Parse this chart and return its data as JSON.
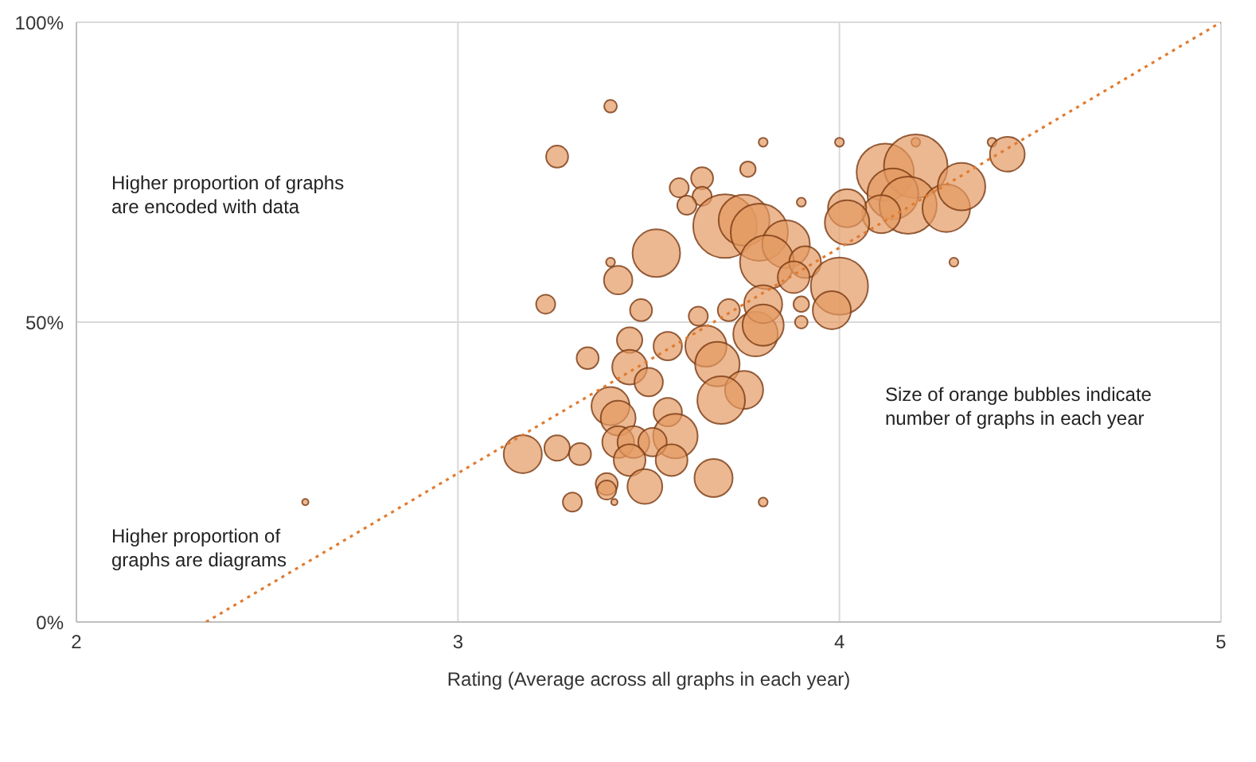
{
  "chart_data": {
    "type": "bubble",
    "xlabel": "Rating (Average across all graphs in each year)",
    "xlim": [
      2,
      5
    ],
    "xticks": [
      2,
      3,
      4,
      5
    ],
    "ylim": [
      0,
      100
    ],
    "yticks": [
      {
        "value": 0,
        "label": "0%"
      },
      {
        "value": 50,
        "label": "50%"
      },
      {
        "value": 100,
        "label": "100%"
      }
    ],
    "grid": true,
    "annotations": [
      "Higher proportion of graphs\nare encoded with data",
      "Higher proportion of\ngraphs are diagrams",
      "Size of orange bubbles indicate\nnumber of graphs in each year"
    ],
    "series": [
      {
        "type": "bubble",
        "color": "#e49a62",
        "x": [
          2.6,
          3.4,
          3.26,
          3.8,
          3.76,
          3.58,
          3.64,
          3.64,
          3.6,
          3.7,
          3.75,
          3.79,
          3.52,
          3.4,
          3.42,
          3.23,
          3.48,
          3.63,
          3.71,
          3.45,
          3.55,
          3.65,
          3.78,
          3.45,
          3.5,
          3.68,
          3.75,
          3.69,
          3.4,
          3.42,
          3.55,
          3.57,
          3.42,
          3.46,
          3.51,
          3.56,
          3.45,
          3.17,
          3.26,
          3.32,
          3.49,
          3.67,
          3.39,
          3.39,
          3.3,
          3.41,
          3.8,
          4.0,
          4.2,
          4.4,
          4.44,
          3.9,
          4.3,
          4.12,
          4.2,
          4.14,
          4.18,
          4.11,
          4.02,
          4.02,
          4.28,
          4.32,
          3.86,
          3.81,
          3.91,
          3.88,
          4.0,
          3.98,
          3.8,
          3.9,
          3.9,
          3.8,
          3.34
        ],
        "values": [
          20,
          86,
          77.6,
          80,
          75.5,
          72.4,
          74,
          71,
          69.5,
          66,
          67,
          65,
          61.5,
          60,
          57,
          53,
          52,
          51,
          52,
          47,
          46,
          46,
          48,
          42.5,
          40,
          43,
          38.7,
          37,
          36,
          34,
          35,
          31,
          30,
          30,
          30,
          27,
          27,
          28,
          29,
          28,
          22.6,
          24,
          23,
          22,
          20,
          20,
          20,
          80,
          80,
          80,
          78,
          70,
          60,
          75,
          76,
          71.4,
          69.5,
          68,
          69,
          66.6,
          69,
          72.6,
          63,
          60,
          60,
          57.5,
          56,
          52,
          53,
          53,
          50,
          49.5,
          44
        ],
        "sizes": [
          0.01,
          0.04,
          0.12,
          0.02,
          0.06,
          0.09,
          0.12,
          0.09,
          0.09,
          1,
          0.64,
          0.81,
          0.56,
          0.02,
          0.2,
          0.09,
          0.12,
          0.09,
          0.12,
          0.16,
          0.2,
          0.42,
          0.49,
          0.3,
          0.2,
          0.49,
          0.36,
          0.56,
          0.36,
          0.3,
          0.2,
          0.49,
          0.25,
          0.25,
          0.2,
          0.25,
          0.25,
          0.36,
          0.16,
          0.12,
          0.3,
          0.36,
          0.12,
          0.09,
          0.09,
          0.01,
          0.02,
          0.02,
          0.02,
          0.02,
          0.3,
          0.02,
          0.02,
          0.81,
          1,
          0.64,
          0.81,
          0.36,
          0.36,
          0.49,
          0.56,
          0.56,
          0.56,
          0.72,
          0.25,
          0.25,
          0.81,
          0.36,
          0.36,
          0.06,
          0.04,
          0.42,
          0.12
        ]
      },
      {
        "type": "line",
        "color": "#e07b30",
        "line_style": "dotted",
        "x": [
          2.34,
          5
        ],
        "values": [
          0,
          100
        ]
      }
    ]
  }
}
